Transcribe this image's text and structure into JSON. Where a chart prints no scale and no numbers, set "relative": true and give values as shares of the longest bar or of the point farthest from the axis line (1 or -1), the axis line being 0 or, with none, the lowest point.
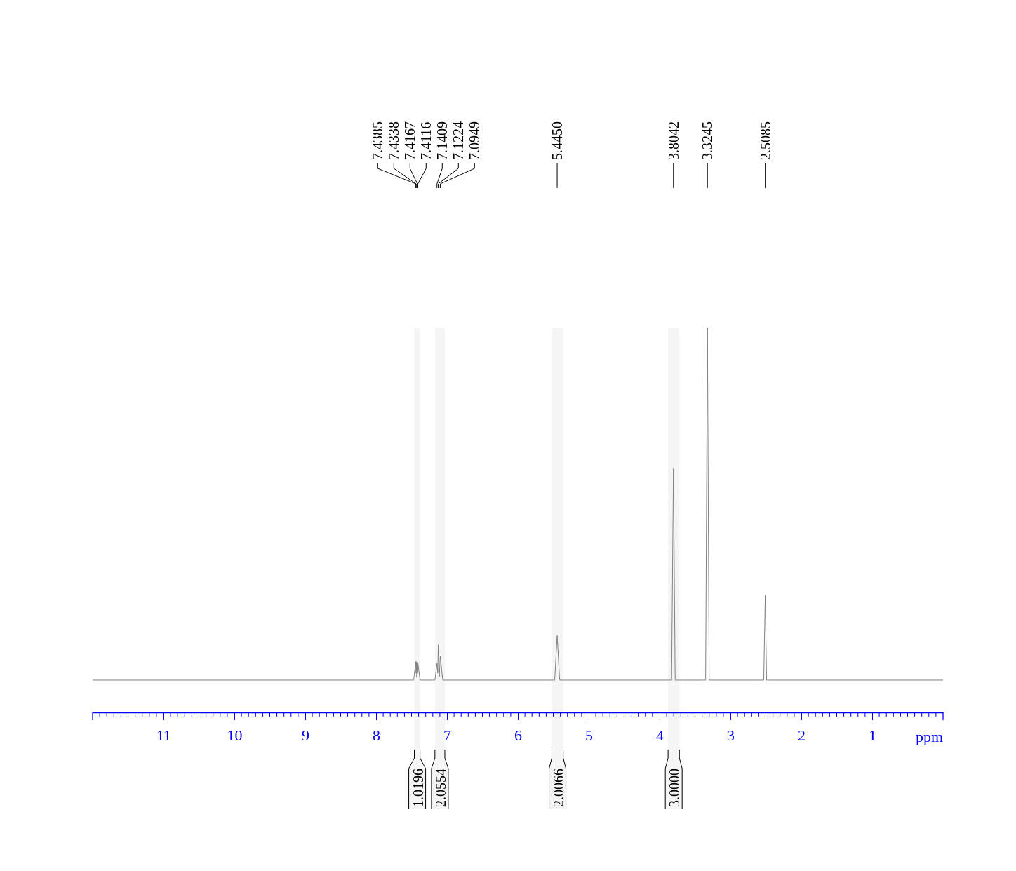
{
  "chart_data": {
    "type": "line",
    "relative": true,
    "xlabel": "ppm",
    "xlim": [
      12,
      0
    ],
    "xticks": [
      11,
      10,
      9,
      8,
      7,
      6,
      5,
      4,
      3,
      2,
      1
    ],
    "marker": "none",
    "line_style": "solid",
    "series": [
      {
        "color": "#808080",
        "x": [
          12,
          7.47,
          7.4385,
          7.436,
          7.4338,
          7.425,
          7.4167,
          7.414,
          7.4116,
          7.38,
          7.17,
          7.1409,
          7.13,
          7.1224,
          7.108,
          7.0949,
          7.06,
          5.48,
          5.445,
          5.41,
          3.83,
          3.8042,
          3.78,
          3.35,
          3.3245,
          3.3,
          2.53,
          2.5085,
          2.49,
          0
        ],
        "values": [
          0.084,
          0.084,
          0.132,
          0.102,
          0.132,
          0.091,
          0.13,
          0.102,
          0.13,
          0.084,
          0.084,
          0.128,
          0.102,
          0.176,
          0.093,
          0.146,
          0.084,
          0.084,
          0.2,
          0.084,
          0.084,
          0.634,
          0.084,
          0.084,
          1,
          0.084,
          0.084,
          0.304,
          0.084,
          0.084
        ]
      }
    ],
    "annotations": [
      {
        "text": "7.4385",
        "x": 7.4385
      },
      {
        "text": "7.4338",
        "x": 7.4338
      },
      {
        "text": "7.4167",
        "x": 7.4167
      },
      {
        "text": "7.4116",
        "x": 7.4116
      },
      {
        "text": "7.1409",
        "x": 7.1409
      },
      {
        "text": "7.1224",
        "x": 7.1224
      },
      {
        "text": "7.0949",
        "x": 7.0949
      },
      {
        "text": "5.4450",
        "x": 5.445
      },
      {
        "text": "3.8042",
        "x": 3.8042
      },
      {
        "text": "3.3245",
        "x": 3.3245
      },
      {
        "text": "2.5085",
        "x": 2.5085
      }
    ],
    "bands": [
      {
        "axis": "x",
        "from": 7.46,
        "to": 7.38,
        "label": "1.0196"
      },
      {
        "axis": "x",
        "from": 7.17,
        "to": 7.03,
        "label": "2.0554"
      },
      {
        "axis": "x",
        "from": 5.52,
        "to": 5.36,
        "label": "2.0066"
      },
      {
        "axis": "x",
        "from": 3.88,
        "to": 3.72,
        "label": "3.0000"
      }
    ]
  }
}
